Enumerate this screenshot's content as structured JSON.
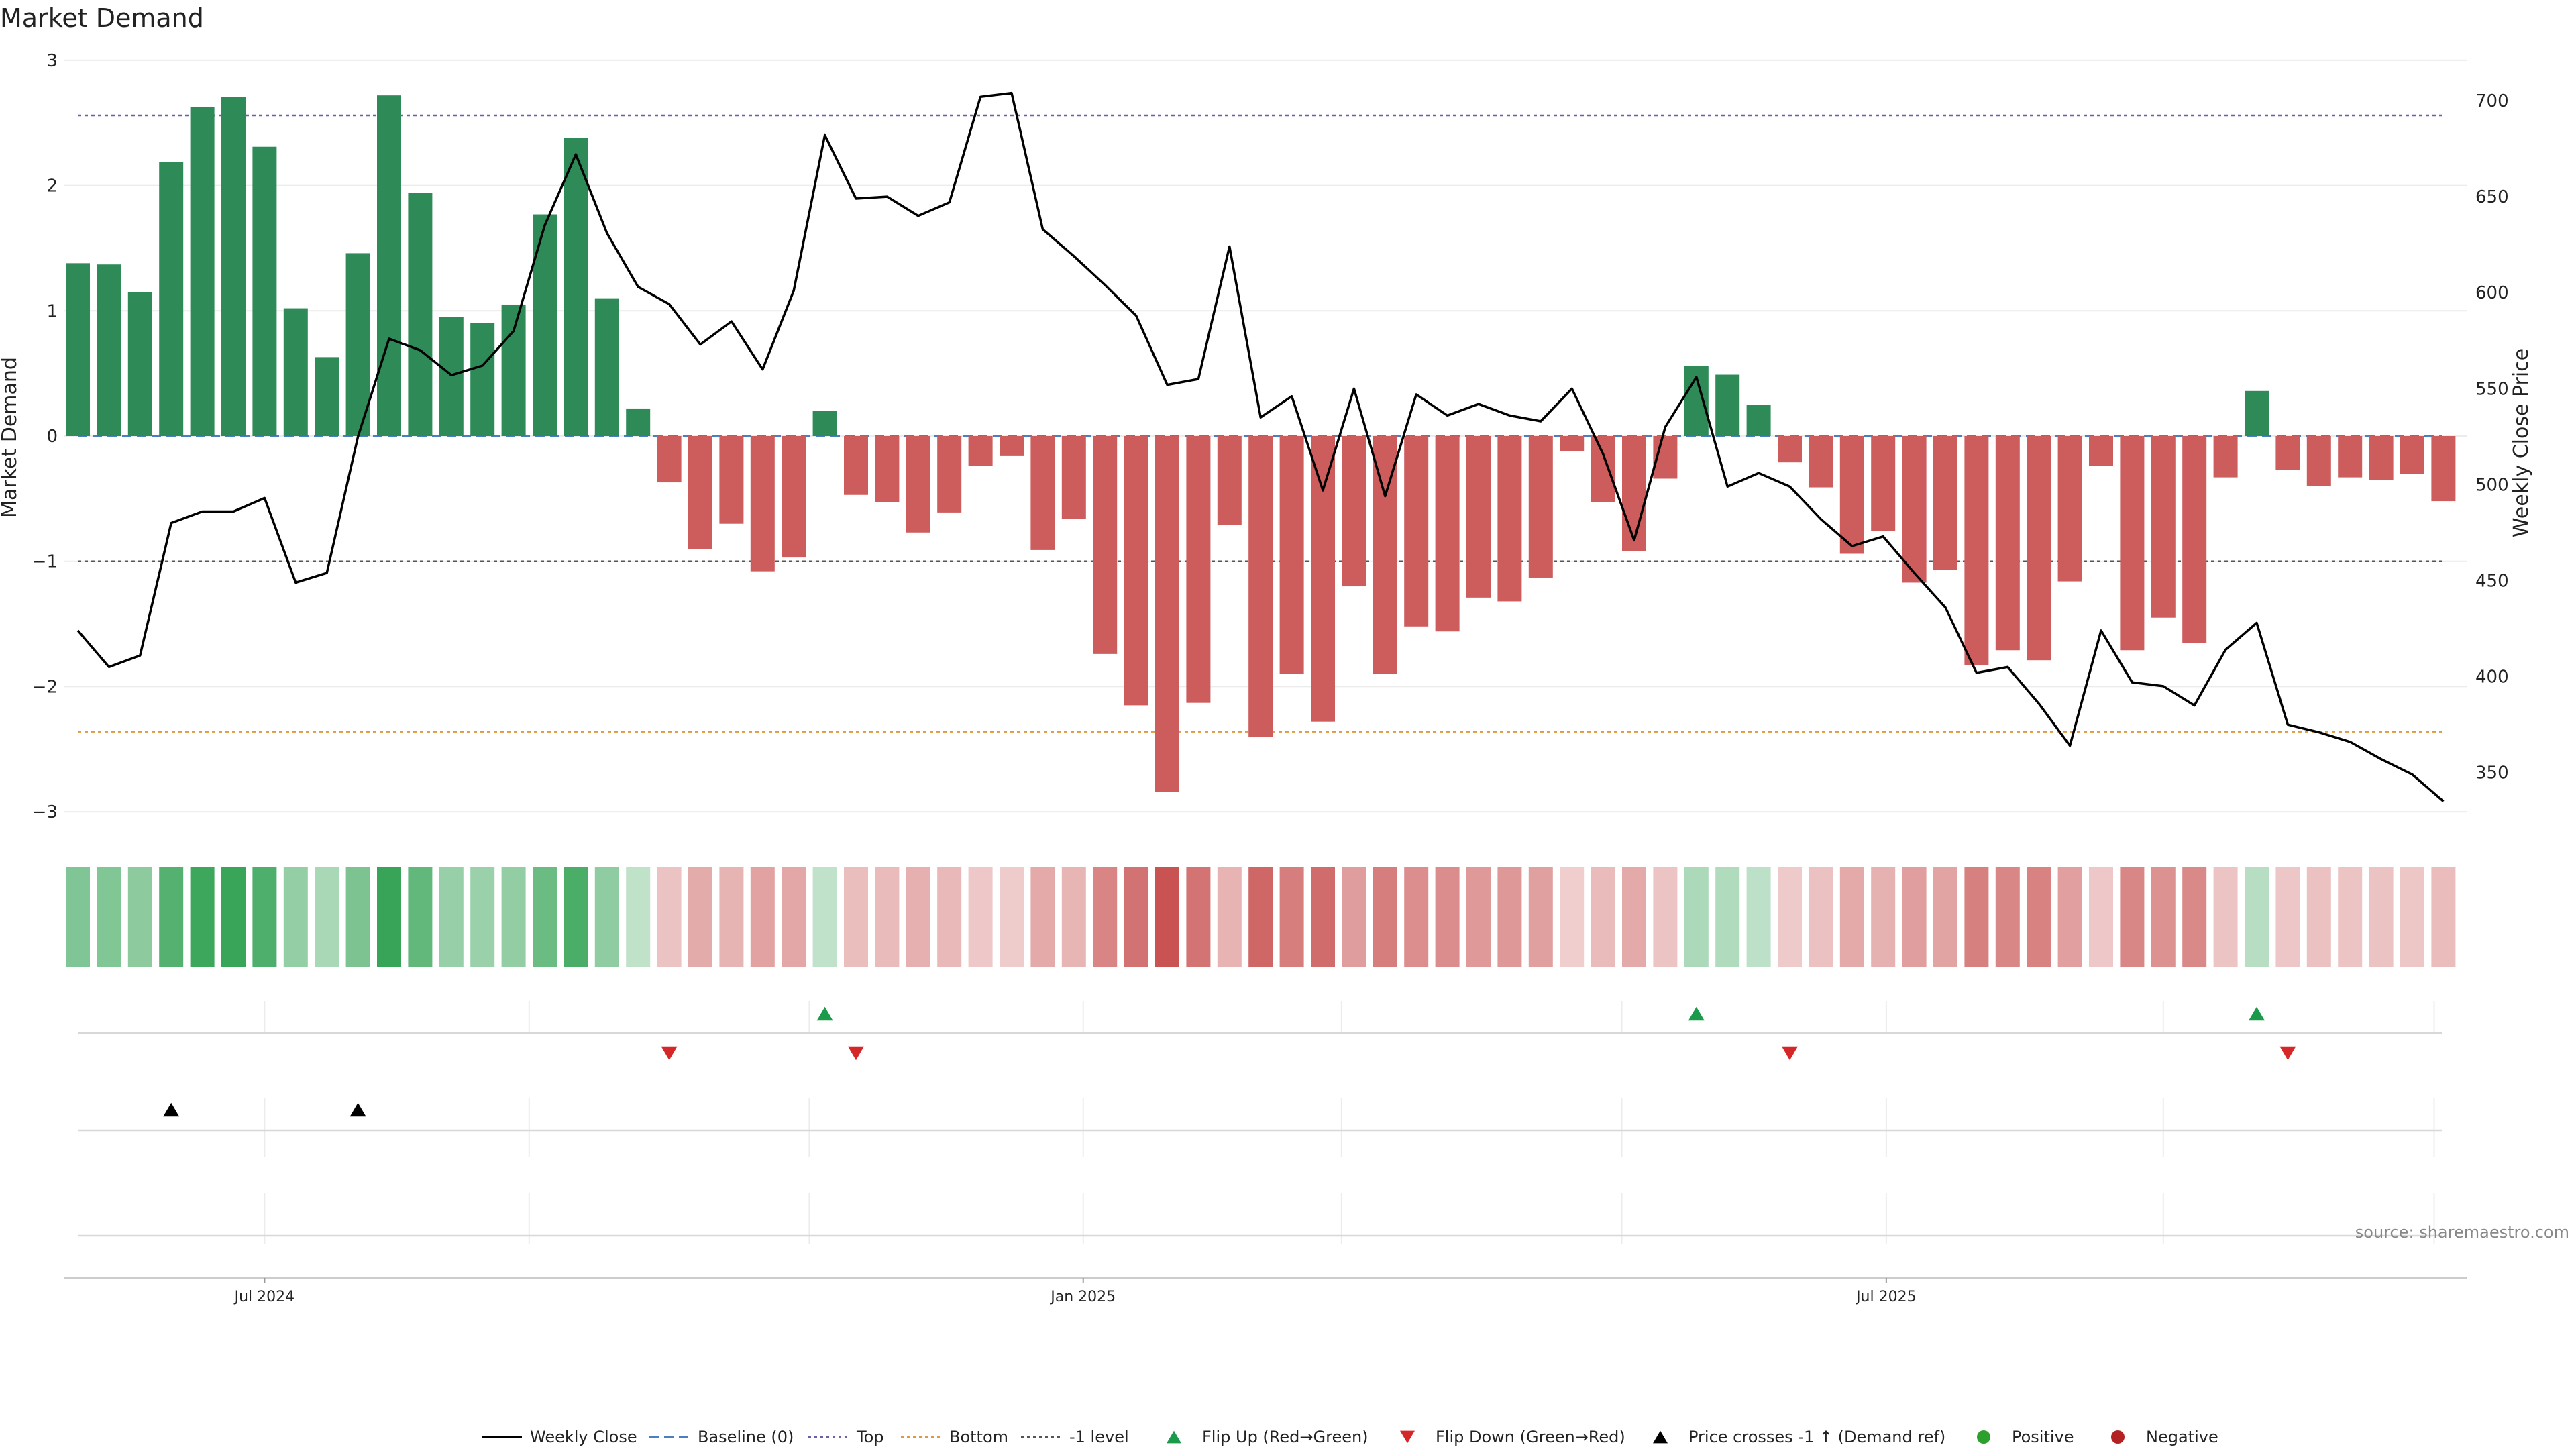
{
  "chart_data": {
    "type": "bar",
    "title": "Market Demand",
    "ylabel": "Market Demand",
    "y2label": "Weekly Close Price",
    "ylim": [
      -3.3,
      3.3
    ],
    "y2lim": [
      325,
      725
    ],
    "yticks": [
      3,
      2,
      1,
      0,
      -1,
      -2,
      -3
    ],
    "ytick_labels": [
      "3",
      "2",
      "1",
      "0",
      "−1",
      "−2",
      "−3"
    ],
    "y2ticks": [
      700,
      650,
      600,
      550,
      500,
      450,
      400,
      350
    ],
    "y2tick_labels": [
      "700",
      "650",
      "600",
      "550",
      "500",
      "450",
      "400",
      "350"
    ],
    "xtick_labels": [
      "Jul 2024",
      "Jan 2025",
      "Jul 2025"
    ],
    "xtick_index": [
      6.0,
      32.3,
      58.1
    ],
    "weeks_count": 77,
    "demand_values": [
      1.38,
      1.37,
      1.15,
      2.19,
      2.63,
      2.71,
      2.31,
      1.02,
      0.63,
      1.46,
      2.72,
      1.94,
      0.95,
      0.9,
      1.05,
      1.77,
      2.38,
      1.1,
      0.22,
      -0.37,
      -0.9,
      -0.7,
      -1.08,
      -0.97,
      0.2,
      -0.47,
      -0.53,
      -0.77,
      -0.61,
      -0.24,
      -0.16,
      -0.91,
      -0.66,
      -1.74,
      -2.15,
      -2.84,
      -2.13,
      -0.71,
      -2.4,
      -1.9,
      -2.28,
      -1.2,
      -1.9,
      -1.52,
      -1.56,
      -1.29,
      -1.32,
      -1.13,
      -0.12,
      -0.53,
      -0.92,
      -0.34,
      0.56,
      0.49,
      0.25,
      -0.21,
      -0.41,
      -0.94,
      -0.76,
      -1.17,
      -1.07,
      -1.83,
      -1.71,
      -1.79,
      -1.16,
      -0.24,
      -1.71,
      -1.45,
      -1.65,
      -0.33,
      0.36,
      -0.27,
      -0.4,
      -0.33,
      -0.35,
      -0.3,
      -0.52
    ],
    "close_values": [
      424,
      405,
      411,
      480,
      486,
      486,
      493,
      449,
      454,
      525,
      576,
      570,
      557,
      562,
      580,
      635,
      672,
      631,
      603,
      594,
      573,
      585,
      560,
      601,
      682,
      649,
      650,
      640,
      647,
      702,
      704,
      633,
      619,
      604,
      588,
      552,
      555,
      624,
      535,
      546,
      497,
      550,
      494,
      547,
      536,
      542,
      536,
      533,
      550,
      516,
      471,
      530,
      556,
      499,
      506,
      499,
      482,
      468,
      473,
      454,
      436,
      402,
      405,
      386,
      364,
      424,
      397,
      395,
      385,
      414,
      428,
      375,
      371,
      366,
      357,
      349,
      335
    ],
    "reference_lines": [
      {
        "name": "Baseline (0)",
        "value": 0,
        "color": "#4a7fc1"
      },
      {
        "name": "Top",
        "value": 2.56,
        "color": "#6b5fa8"
      },
      {
        "name": "Bottom",
        "value": -2.36,
        "color": "#e09a3a"
      },
      {
        "name": "-1 level",
        "value": -1,
        "color": "#555555"
      }
    ],
    "flip_up_weeks": [
      24,
      52,
      70
    ],
    "flip_down_weeks": [
      19,
      25,
      55,
      71
    ],
    "price_cross_weeks": [
      3,
      9
    ],
    "colors": {
      "positive_bar": "#2e8b57",
      "negative_bar": "#cd5c5c",
      "close_line": "#000000",
      "flip_up": "#1a9a4a",
      "flip_down": "#d62728",
      "cross_marker": "#000000",
      "positive_dot": "#2ca02c",
      "negative_dot": "#b22222"
    },
    "legend": [
      {
        "label": "Weekly Close",
        "style": "line"
      },
      {
        "label": "Baseline (0)",
        "style": "dash-blue"
      },
      {
        "label": "Top",
        "style": "dot-purple"
      },
      {
        "label": "Bottom",
        "style": "dot-orange"
      },
      {
        "label": "-1 level",
        "style": "dot-gray"
      },
      {
        "label": "Flip Up (Red→Green)",
        "style": "tri-up-green"
      },
      {
        "label": "Flip Down (Green→Red)",
        "style": "tri-down-red"
      },
      {
        "label": "Price crosses -1 ↑ (Demand ref)",
        "style": "tri-up-black"
      },
      {
        "label": "Positive",
        "style": "dot-green"
      },
      {
        "label": "Negative",
        "style": "dot-red"
      }
    ]
  },
  "source": "source: sharemaestro.com"
}
